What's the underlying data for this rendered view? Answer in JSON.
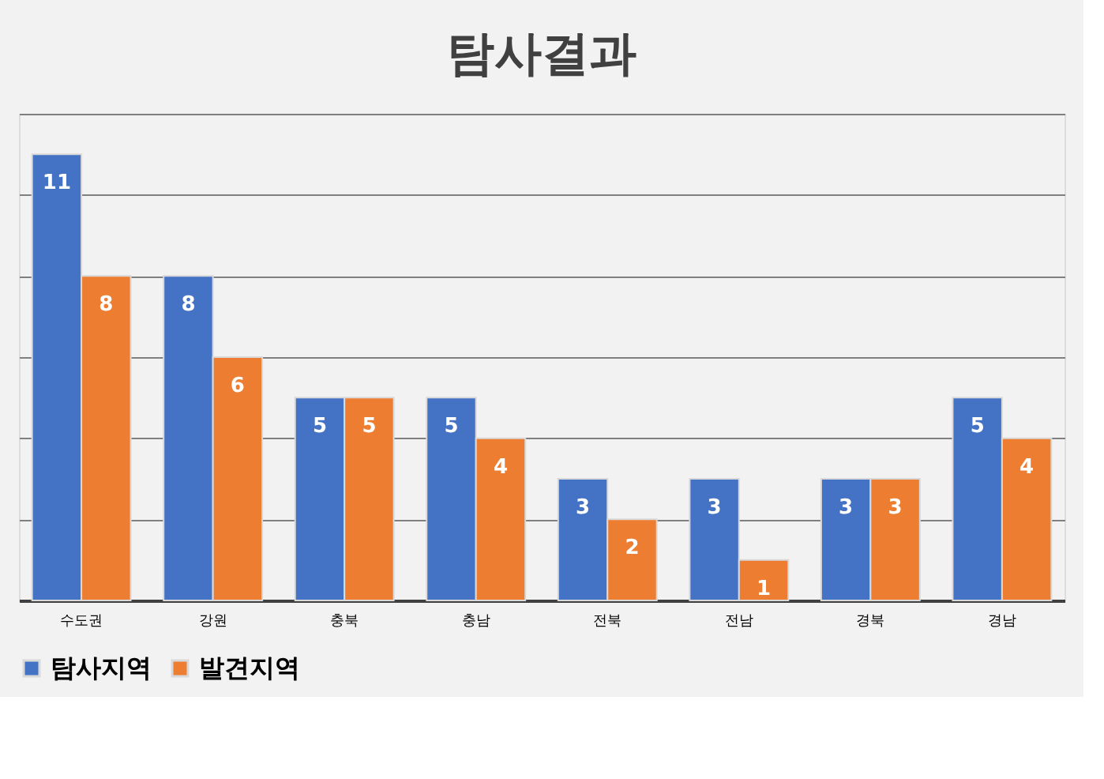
{
  "chart_data": {
    "type": "bar",
    "title": "탐사결과",
    "categories": [
      "수도권",
      "강원",
      "충북",
      "충남",
      "전북",
      "전남",
      "경북",
      "경남"
    ],
    "series": [
      {
        "name": "탐사지역",
        "color": "#4472c4",
        "values": [
          11,
          8,
          5,
          5,
          3,
          3,
          3,
          5
        ]
      },
      {
        "name": "발견지역",
        "color": "#ed7d31",
        "values": [
          8,
          6,
          5,
          4,
          2,
          1,
          3,
          4
        ]
      }
    ],
    "ylim": [
      0,
      12
    ],
    "yticks": [
      {
        "value": 0,
        "label": null
      },
      {
        "value": 2,
        "label": null
      },
      {
        "value": 4,
        "label": null
      },
      {
        "value": 6,
        "label": null
      },
      {
        "value": 8,
        "label": null
      },
      {
        "value": 10,
        "label": null
      },
      {
        "value": 12,
        "label": null
      }
    ],
    "grid": "y",
    "legend": "bottom",
    "data_labels": true,
    "tick_labels": "x"
  }
}
